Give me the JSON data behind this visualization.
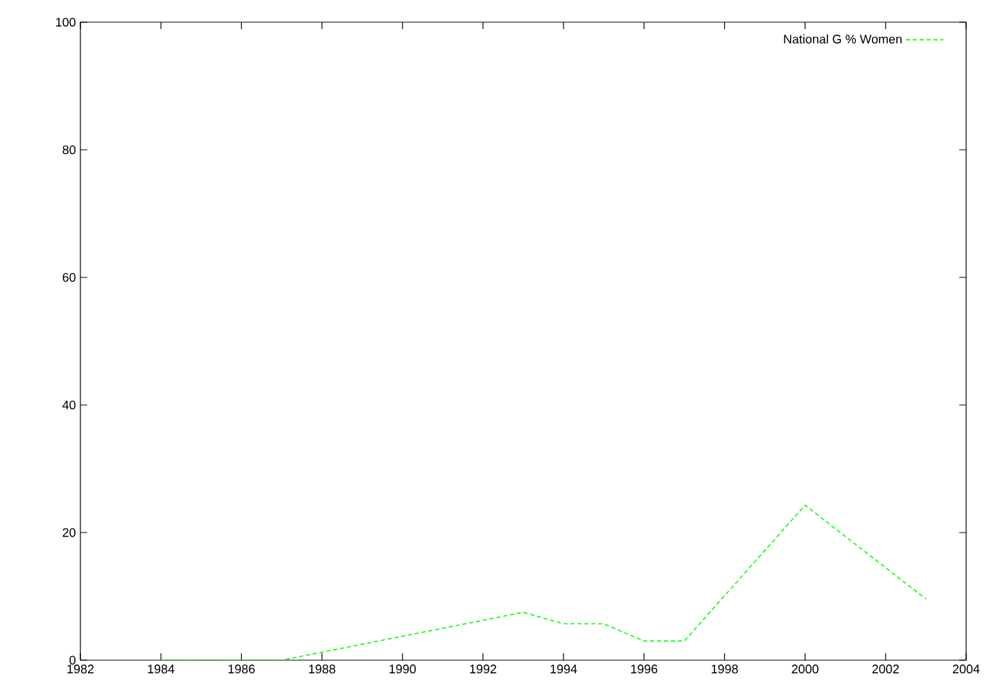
{
  "chart_data": {
    "type": "line",
    "x": [
      1984,
      1987,
      1993,
      1994,
      1995,
      1996,
      1997,
      2000,
      2003
    ],
    "series": [
      {
        "name": "National G % Women",
        "color": "#00ff00",
        "values": [
          0,
          0,
          7.5,
          5.7,
          5.7,
          3.0,
          3.0,
          24.3,
          9.6
        ]
      }
    ],
    "xlim": [
      1982,
      2004
    ],
    "xticks": [
      1982,
      1984,
      1986,
      1988,
      1990,
      1992,
      1994,
      1996,
      1998,
      2000,
      2002,
      2004
    ],
    "ylim": [
      0,
      100
    ],
    "yticks": [
      0,
      20,
      40,
      60,
      80,
      100
    ],
    "legend": "top right",
    "line_style": "dashed",
    "marker": "none",
    "grid": false
  }
}
